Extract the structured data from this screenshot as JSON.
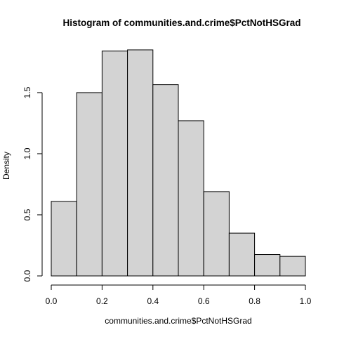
{
  "chart_data": {
    "type": "bar",
    "title": "Histogram of communities.and.crime$PctNotHSGrad",
    "xlabel": "communities.and.crime$PctNotHSGrad",
    "ylabel": "Density",
    "bins": [
      {
        "x0": 0.0,
        "x1": 0.1,
        "density": 0.61
      },
      {
        "x0": 0.1,
        "x1": 0.2,
        "density": 1.5
      },
      {
        "x0": 0.2,
        "x1": 0.3,
        "density": 1.84
      },
      {
        "x0": 0.3,
        "x1": 0.4,
        "density": 1.85
      },
      {
        "x0": 0.4,
        "x1": 0.5,
        "density": 1.565
      },
      {
        "x0": 0.5,
        "x1": 0.6,
        "density": 1.27
      },
      {
        "x0": 0.6,
        "x1": 0.7,
        "density": 0.69
      },
      {
        "x0": 0.7,
        "x1": 0.8,
        "density": 0.35
      },
      {
        "x0": 0.8,
        "x1": 0.9,
        "density": 0.175
      },
      {
        "x0": 0.9,
        "x1": 1.0,
        "density": 0.16
      }
    ],
    "xlim": [
      0,
      1
    ],
    "ylim": [
      0,
      1.85
    ],
    "xticks": [
      "0.0",
      "0.2",
      "0.4",
      "0.6",
      "0.8",
      "1.0"
    ],
    "yticks": [
      "0.0",
      "0.5",
      "1.0",
      "1.5"
    ],
    "grid": false
  }
}
